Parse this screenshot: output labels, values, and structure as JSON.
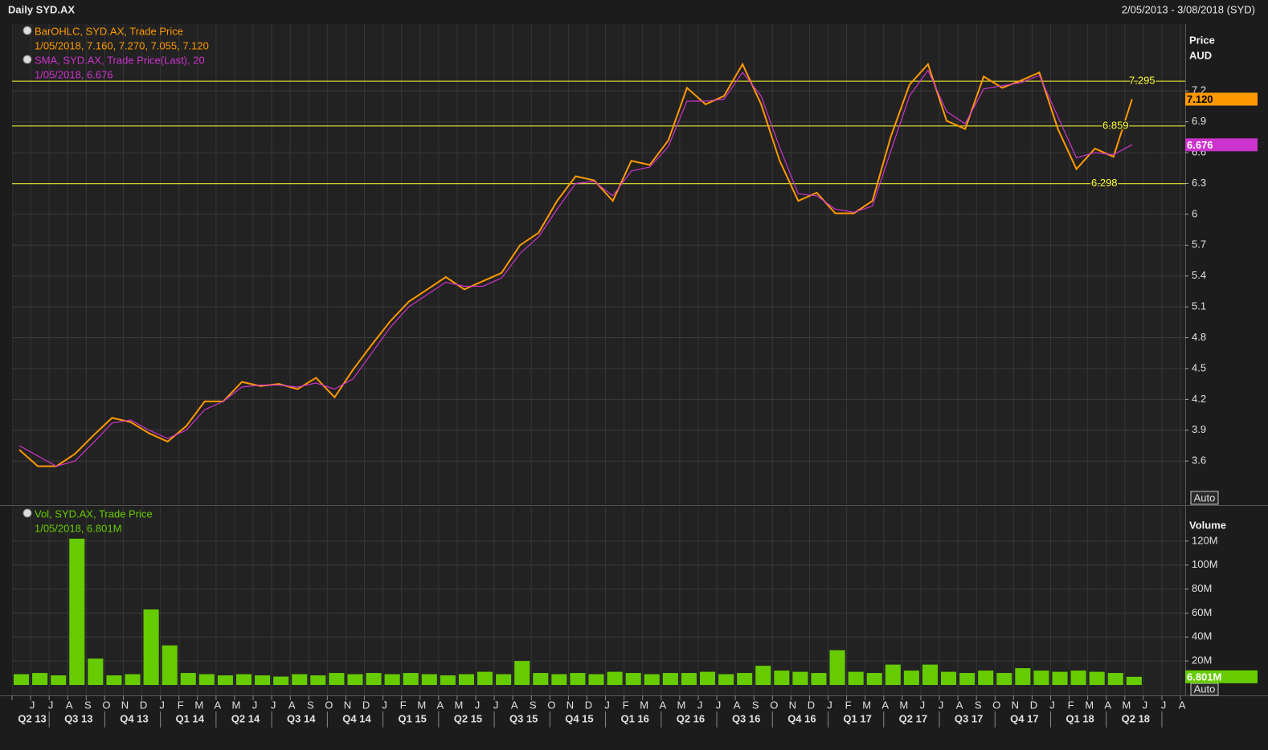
{
  "header": {
    "title": "Daily SYD.AX",
    "range": "2/05/2013 - 3/08/2018 (SYD)"
  },
  "chart_data": [
    {
      "type": "line",
      "y_label": "Price",
      "y_unit": "AUD",
      "scale_mode": "Auto",
      "series": [
        {
          "name": "BarOHLC, SYD.AX, Trade Price",
          "detail": "1/05/2018, 7.160, 7.270, 7.055, 7.120",
          "color": "#ff9900",
          "values": [
            3.71,
            3.55,
            3.55,
            3.67,
            3.85,
            4.02,
            3.98,
            3.87,
            3.79,
            3.94,
            4.18,
            4.18,
            4.37,
            4.33,
            4.35,
            4.3,
            4.41,
            4.22,
            4.49,
            4.73,
            4.96,
            5.15,
            5.27,
            5.39,
            5.27,
            5.35,
            5.43,
            5.7,
            5.82,
            6.13,
            6.37,
            6.33,
            6.13,
            6.52,
            6.48,
            6.72,
            7.23,
            7.07,
            7.15,
            7.46,
            7.07,
            6.52,
            6.13,
            6.21,
            6.01,
            6.01,
            6.13,
            6.76,
            7.26,
            7.46,
            6.91,
            6.83,
            7.34,
            7.23,
            7.3,
            7.38,
            6.83,
            6.44,
            6.64,
            6.56,
            7.12,
            null,
            null,
            null
          ],
          "last_tag": {
            "value": 7.12,
            "label": "7.120"
          }
        },
        {
          "name": "SMA, SYD.AX, Trade Price(Last),  20",
          "detail": "1/05/2018, 6.676",
          "color": "#cc33cc",
          "values": [
            3.75,
            3.65,
            3.55,
            3.6,
            3.78,
            3.97,
            4.0,
            3.9,
            3.82,
            3.9,
            4.1,
            4.18,
            4.32,
            4.34,
            4.34,
            4.32,
            4.36,
            4.3,
            4.4,
            4.65,
            4.9,
            5.1,
            5.22,
            5.34,
            5.3,
            5.3,
            5.38,
            5.62,
            5.78,
            6.05,
            6.3,
            6.32,
            6.18,
            6.42,
            6.46,
            6.66,
            7.1,
            7.1,
            7.12,
            7.38,
            7.15,
            6.65,
            6.2,
            6.18,
            6.05,
            6.02,
            6.08,
            6.62,
            7.15,
            7.4,
            7.0,
            6.88,
            7.22,
            7.25,
            7.28,
            7.35,
            6.95,
            6.55,
            6.6,
            6.58,
            6.676,
            null,
            null,
            null
          ],
          "last_tag": 6.676
        }
      ],
      "levels": [
        7.295,
        6.859,
        6.298
      ],
      "level_color": "#ffff33",
      "ylim": [
        3.18,
        7.85
      ],
      "yticks": [
        3.6,
        3.9,
        4.2,
        4.5,
        4.8,
        5.1,
        5.4,
        5.7,
        6,
        6.3,
        6.6,
        6.9,
        7.2
      ],
      "grid": true
    },
    {
      "type": "bar",
      "y_label": "Volume",
      "scale_mode": "Auto",
      "categories": [
        null,
        "J",
        "J",
        "A",
        "S",
        "O",
        "N",
        "D",
        "J",
        "F",
        "M",
        "A",
        "M",
        "J",
        "J",
        "A",
        "S",
        "O",
        "N",
        "D",
        "J",
        "F",
        "M",
        "A",
        "M",
        "J",
        "J",
        "A",
        "S",
        "O",
        "N",
        "D",
        "J",
        "F",
        "M",
        "A",
        "M",
        "J",
        "J",
        "A",
        "S",
        "O",
        "N",
        "D",
        "J",
        "F",
        "M",
        "A",
        "M",
        "J",
        "J",
        "A",
        "S",
        "O",
        "N",
        "D",
        "J",
        "F",
        "M",
        "A",
        "M",
        "J",
        "J",
        "A"
      ],
      "quarters": [
        "Q2 13",
        "Q3 13",
        "Q4 13",
        "Q1 14",
        "Q2 14",
        "Q3 14",
        "Q4 14",
        "Q1 15",
        "Q2 15",
        "Q3 15",
        "Q4 15",
        "Q1 16",
        "Q2 16",
        "Q3 16",
        "Q4 16",
        "Q1 17",
        "Q2 17",
        "Q3 17",
        "Q4 17",
        "Q1 18",
        "Q2 18"
      ],
      "series": [
        {
          "name": "Vol, SYD.AX, Trade Price",
          "detail": "1/05/2018, 6.801M",
          "color": "#66cc00",
          "values": [
            9000000,
            10000000,
            8000000,
            122000000,
            22000000,
            8000000,
            9000000,
            63000000,
            33000000,
            10000000,
            9000000,
            8000000,
            9000000,
            8000000,
            7000000,
            9000000,
            8000000,
            10000000,
            9000000,
            10000000,
            9000000,
            10000000,
            9000000,
            8000000,
            9000000,
            11000000,
            9000000,
            20000000,
            10000000,
            9000000,
            10000000,
            9000000,
            11000000,
            10000000,
            9000000,
            10000000,
            10000000,
            11000000,
            9000000,
            10000000,
            16000000,
            12000000,
            11000000,
            10000000,
            29000000,
            11000000,
            10000000,
            17000000,
            12000000,
            17000000,
            11000000,
            10000000,
            12000000,
            10000000,
            14000000,
            12000000,
            11000000,
            12000000,
            11000000,
            10000000,
            6801000,
            null,
            null,
            null
          ],
          "last_tag": {
            "value": 6801000,
            "label": "6.801M"
          }
        }
      ],
      "ylim": [
        -8700000,
        148700000
      ],
      "yticks": [
        {
          "value": 20000000,
          "label": "20M"
        },
        {
          "value": 40000000,
          "label": "40M"
        },
        {
          "value": 60000000,
          "label": "60M"
        },
        {
          "value": 80000000,
          "label": "80M"
        },
        {
          "value": 100000000,
          "label": "100M"
        },
        {
          "value": 120000000,
          "label": "120M"
        }
      ],
      "grid": true
    }
  ]
}
